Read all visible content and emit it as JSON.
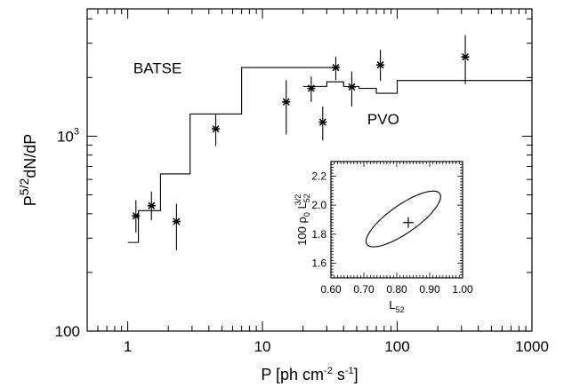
{
  "chart_data": [
    {
      "type": "scatter",
      "title": "",
      "xlabel": {
        "base": "P [ph cm",
        "sup1": "-2",
        "mid": " s",
        "sup2": "-1",
        "end": "]"
      },
      "ylabel": {
        "base": "P",
        "sup": "5/2",
        "rest": "dN/dP"
      },
      "xscale": "log",
      "yscale": "log",
      "xlim": [
        0.5,
        1000
      ],
      "ylim": [
        100,
        4500
      ],
      "xticks": [
        {
          "value": 1,
          "label": "1"
        },
        {
          "value": 10,
          "label": "10"
        },
        {
          "value": 100,
          "label": "100"
        },
        {
          "value": 1000,
          "label": "1000"
        }
      ],
      "yticks": [
        {
          "value": 100,
          "label": "100"
        },
        {
          "value": 1000,
          "label": "10",
          "sup": "3"
        }
      ],
      "annotations": [
        {
          "text": "BATSE",
          "x": 1.1,
          "y": 2100
        },
        {
          "text": "PVO",
          "x": 60,
          "y": 1150
        }
      ],
      "series": [
        {
          "kind": "points_with_errorbars",
          "points": [
            {
              "x": 1.15,
              "y": 390,
              "lo": 320,
              "hi": 470
            },
            {
              "x": 1.5,
              "y": 440,
              "lo": 370,
              "hi": 520
            },
            {
              "x": 2.3,
              "y": 365,
              "lo": 260,
              "hi": 450
            },
            {
              "x": 4.5,
              "y": 1090,
              "lo": 890,
              "hi": 1300
            },
            {
              "x": 15,
              "y": 1500,
              "lo": 1020,
              "hi": 1940
            },
            {
              "x": 23,
              "y": 1760,
              "lo": 1500,
              "hi": 2020
            },
            {
              "x": 28,
              "y": 1180,
              "lo": 950,
              "hi": 1420
            },
            {
              "x": 35,
              "y": 2250,
              "lo": 1940,
              "hi": 2560
            },
            {
              "x": 46,
              "y": 1790,
              "lo": 1420,
              "hi": 2150
            },
            {
              "x": 75,
              "y": 2320,
              "lo": 1920,
              "hi": 2780
            },
            {
              "x": 320,
              "y": 2550,
              "lo": 1850,
              "hi": 3300
            }
          ]
        },
        {
          "kind": "step",
          "steps": [
            {
              "x0": 1.0,
              "x1": 1.2,
              "y": 285
            },
            {
              "x0": 1.2,
              "x1": 1.75,
              "y": 415
            },
            {
              "x0": 1.75,
              "x1": 2.9,
              "y": 640
            },
            {
              "x0": 2.9,
              "x1": 7.0,
              "y": 1300
            },
            {
              "x0": 7.0,
              "x1": 20,
              "y": 2250
            },
            {
              "x0": 20,
              "x1": 35,
              "y": 2250
            }
          ]
        },
        {
          "kind": "step",
          "steps": [
            {
              "x0": 20,
              "x1": 30,
              "y": 1800
            },
            {
              "x0": 30,
              "x1": 40,
              "y": 1900
            },
            {
              "x0": 40,
              "x1": 52,
              "y": 1800
            },
            {
              "x0": 52,
              "x1": 70,
              "y": 1760
            },
            {
              "x0": 70,
              "x1": 100,
              "y": 1660
            },
            {
              "x0": 100,
              "x1": 1000,
              "y": 1930
            }
          ]
        }
      ]
    },
    {
      "type": "contour",
      "title": "",
      "xlabel": {
        "base": "L",
        "sub": "52"
      },
      "ylabel": {
        "pre": "100 ",
        "rho": "ρ",
        "rhosub": "0",
        "mid": " L",
        "sub": "52",
        "sup": "3/2"
      },
      "xlim": [
        0.6,
        1.0
      ],
      "ylim": [
        1.5,
        2.3
      ],
      "xticks": [
        {
          "value": 0.6,
          "label": "0.60"
        },
        {
          "value": 0.7,
          "label": "0.70"
        },
        {
          "value": 0.8,
          "label": "0.80"
        },
        {
          "value": 0.9,
          "label": "0.90"
        },
        {
          "value": 1.0,
          "label": "1.00"
        }
      ],
      "yticks": [
        {
          "value": 1.6,
          "label": "1.6"
        },
        {
          "value": 1.8,
          "label": "1.8"
        },
        {
          "value": 2.0,
          "label": "2.0"
        },
        {
          "value": 2.2,
          "label": "2.2"
        }
      ],
      "best_fit": {
        "x": 0.835,
        "y": 1.88
      },
      "contour": {
        "center_x": 0.82,
        "center_y": 1.905,
        "semi_x": 0.15,
        "semi_y": 0.23,
        "tilt_deg": 35
      }
    }
  ]
}
